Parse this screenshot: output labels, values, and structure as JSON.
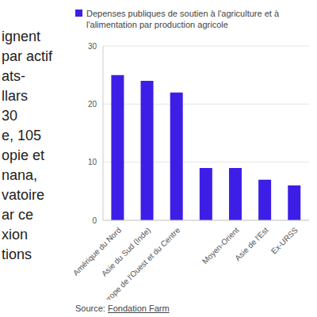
{
  "chart_data": {
    "type": "bar",
    "series": [
      {
        "name": "Depenses publiques de soutien à l'agriculture et à l'alimentation par production agricole",
        "color": "#3d1ee6",
        "values": [
          25,
          24,
          22,
          9,
          9,
          7,
          6
        ]
      }
    ],
    "categories": [
      "Amérique du Nord",
      "Asie du Sud (Inde)",
      "Europe de l'Ouest et du Centre",
      null,
      "Moyen-Orient",
      "Asie de l'Est",
      "Ex-URSS"
    ],
    "ylim": [
      0,
      30
    ],
    "yticks": [
      0,
      10,
      20,
      30
    ],
    "grid": true,
    "legend": "top",
    "side_text": [
      "ignent",
      "par actif",
      "ats-",
      "llars",
      "30",
      "e, 105",
      "opie et",
      "nana,",
      "vatoire",
      "ar ce",
      "xion",
      "tions"
    ],
    "source_prefix": "Source:",
    "source": "Fondation Farm"
  }
}
